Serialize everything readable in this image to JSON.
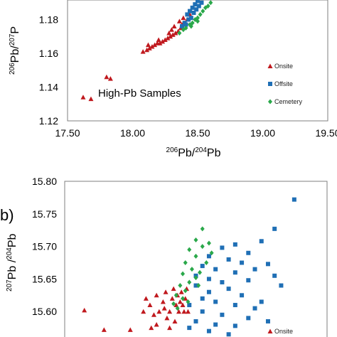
{
  "chart_data": [
    {
      "type": "scatter",
      "panel_label": "",
      "xlabel": {
        "pre": "206",
        "base1": "Pb/",
        "mid": "204",
        "base2": "Pb"
      },
      "ylabel": {
        "pre": "206",
        "base1": "Pb/",
        "mid": "207",
        "base2": "P"
      },
      "xlim": [
        17.5,
        19.5
      ],
      "ylim": [
        1.12,
        1.2
      ],
      "xticks": [
        "17.50",
        "18.00",
        "18.50",
        "19.00",
        "19.50"
      ],
      "yticks": [
        "1.12",
        "1.14",
        "1.16",
        "1.18"
      ],
      "annotation": "High-Pb Samples",
      "legend_position": "bottom-right",
      "grid": false,
      "series": [
        {
          "name": "Onsite",
          "marker": "triangle",
          "color": "#c0191e",
          "points": [
            [
              17.62,
              1.134
            ],
            [
              17.68,
              1.133
            ],
            [
              17.8,
              1.146
            ],
            [
              17.83,
              1.145
            ],
            [
              18.08,
              1.161
            ],
            [
              18.11,
              1.162
            ],
            [
              18.13,
              1.163
            ],
            [
              18.15,
              1.164
            ],
            [
              18.12,
              1.165
            ],
            [
              18.17,
              1.165
            ],
            [
              18.19,
              1.166
            ],
            [
              18.21,
              1.166
            ],
            [
              18.23,
              1.167
            ],
            [
              18.2,
              1.168
            ],
            [
              18.25,
              1.168
            ],
            [
              18.27,
              1.169
            ],
            [
              18.29,
              1.17
            ],
            [
              18.31,
              1.171
            ],
            [
              18.28,
              1.172
            ],
            [
              18.33,
              1.172
            ],
            [
              18.35,
              1.173
            ],
            [
              18.3,
              1.174
            ],
            [
              18.37,
              1.175
            ],
            [
              18.32,
              1.176
            ],
            [
              18.38,
              1.177
            ],
            [
              18.4,
              1.178
            ],
            [
              18.36,
              1.179
            ],
            [
              18.42,
              1.18
            ],
            [
              18.39,
              1.181
            ],
            [
              18.44,
              1.183
            ]
          ]
        },
        {
          "name": "Offsite",
          "marker": "square",
          "color": "#1f6fb5",
          "points": [
            [
              18.4,
              1.178
            ],
            [
              18.43,
              1.18
            ],
            [
              18.45,
              1.181
            ],
            [
              18.42,
              1.183
            ],
            [
              18.47,
              1.184
            ],
            [
              18.44,
              1.185
            ],
            [
              18.49,
              1.186
            ],
            [
              18.46,
              1.187
            ],
            [
              18.51,
              1.188
            ],
            [
              18.48,
              1.189
            ],
            [
              18.53,
              1.19
            ],
            [
              18.5,
              1.191
            ],
            [
              18.55,
              1.192
            ],
            [
              18.52,
              1.193
            ],
            [
              18.57,
              1.194
            ],
            [
              18.54,
              1.195
            ],
            [
              18.59,
              1.196
            ],
            [
              18.56,
              1.197
            ],
            [
              18.61,
              1.198
            ],
            [
              18.58,
              1.199
            ],
            [
              18.63,
              1.199
            ],
            [
              18.65,
              1.2
            ],
            [
              18.38,
              1.176
            ],
            [
              18.41,
              1.177
            ],
            [
              18.6,
              1.195
            ],
            [
              18.62,
              1.197
            ]
          ]
        },
        {
          "name": "Cemetery",
          "marker": "diamond",
          "color": "#2aa84a",
          "points": [
            [
              18.36,
              1.172
            ],
            [
              18.39,
              1.174
            ],
            [
              18.41,
              1.175
            ],
            [
              18.44,
              1.177
            ],
            [
              18.46,
              1.178
            ],
            [
              18.48,
              1.18
            ],
            [
              18.5,
              1.181
            ],
            [
              18.52,
              1.183
            ],
            [
              18.54,
              1.185
            ],
            [
              18.56,
              1.187
            ],
            [
              18.58,
              1.188
            ],
            [
              18.6,
              1.19
            ],
            [
              18.62,
              1.192
            ],
            [
              18.45,
              1.176
            ],
            [
              18.5,
              1.179
            ]
          ]
        }
      ]
    },
    {
      "type": "scatter",
      "panel_label": "b)",
      "xlabel": {
        "pre": "",
        "base1": "",
        "mid": "",
        "base2": ""
      },
      "ylabel": {
        "pre": "207",
        "base1": "Pb /",
        "mid": "204",
        "base2": "Pb"
      },
      "xlim": [
        17.5,
        19.5
      ],
      "ylim": [
        15.55,
        15.8
      ],
      "xticks": [],
      "yticks": [
        "15.80",
        "15.75",
        "15.70",
        "15.65",
        "15.60"
      ],
      "legend_position": "bottom-right",
      "legend_visible": [
        "Onsite"
      ],
      "grid": false,
      "series": [
        {
          "name": "Onsite",
          "marker": "triangle",
          "color": "#c0191e",
          "points": [
            [
              17.65,
              15.602
            ],
            [
              17.8,
              15.572
            ],
            [
              18.0,
              15.572
            ],
            [
              18.1,
              15.6
            ],
            [
              18.12,
              15.62
            ],
            [
              18.15,
              15.61
            ],
            [
              18.18,
              15.595
            ],
            [
              18.2,
              15.625
            ],
            [
              18.22,
              15.6
            ],
            [
              18.25,
              15.615
            ],
            [
              18.27,
              15.63
            ],
            [
              18.28,
              15.59
            ],
            [
              18.3,
              15.6
            ],
            [
              18.32,
              15.62
            ],
            [
              18.33,
              15.635
            ],
            [
              18.35,
              15.61
            ],
            [
              18.36,
              15.625
            ],
            [
              18.37,
              15.6
            ],
            [
              18.38,
              15.615
            ],
            [
              18.39,
              15.63
            ],
            [
              18.4,
              15.61
            ],
            [
              18.41,
              15.6
            ],
            [
              18.3,
              15.575
            ],
            [
              18.2,
              15.58
            ],
            [
              18.34,
              15.585
            ],
            [
              18.42,
              15.62
            ],
            [
              18.43,
              15.635
            ],
            [
              18.26,
              15.605
            ],
            [
              18.16,
              15.575
            ],
            [
              18.44,
              15.6
            ]
          ]
        },
        {
          "name": "Offsite",
          "marker": "square",
          "color": "#1f6fb5",
          "points": [
            [
              19.25,
              15.772
            ],
            [
              19.1,
              15.727
            ],
            [
              19.0,
              15.708
            ],
            [
              18.8,
              15.703
            ],
            [
              18.7,
              15.698
            ],
            [
              18.9,
              15.69
            ],
            [
              18.6,
              15.685
            ],
            [
              18.75,
              15.68
            ],
            [
              18.85,
              15.675
            ],
            [
              19.05,
              15.673
            ],
            [
              18.55,
              15.67
            ],
            [
              18.65,
              15.665
            ],
            [
              18.8,
              15.66
            ],
            [
              18.95,
              15.665
            ],
            [
              18.5,
              15.655
            ],
            [
              18.6,
              15.65
            ],
            [
              18.7,
              15.645
            ],
            [
              18.9,
              15.648
            ],
            [
              19.1,
              15.655
            ],
            [
              18.5,
              15.64
            ],
            [
              18.6,
              15.63
            ],
            [
              18.75,
              15.635
            ],
            [
              18.85,
              15.625
            ],
            [
              19.15,
              15.64
            ],
            [
              18.55,
              15.62
            ],
            [
              18.65,
              15.615
            ],
            [
              18.8,
              15.61
            ],
            [
              18.95,
              15.605
            ],
            [
              18.45,
              15.61
            ],
            [
              18.55,
              15.6
            ],
            [
              18.7,
              15.595
            ],
            [
              18.9,
              15.59
            ],
            [
              19.0,
              15.615
            ],
            [
              18.5,
              15.585
            ],
            [
              18.65,
              15.58
            ],
            [
              18.8,
              15.578
            ],
            [
              19.05,
              15.585
            ],
            [
              18.45,
              15.575
            ],
            [
              18.6,
              15.57
            ],
            [
              18.75,
              15.565
            ]
          ]
        },
        {
          "name": "Cemetery",
          "marker": "diamond",
          "color": "#2aa84a",
          "points": [
            [
              18.55,
              15.727
            ],
            [
              18.5,
              15.71
            ],
            [
              18.6,
              15.705
            ],
            [
              18.45,
              15.695
            ],
            [
              18.55,
              15.7
            ],
            [
              18.62,
              15.69
            ],
            [
              18.5,
              15.685
            ],
            [
              18.42,
              15.675
            ],
            [
              18.58,
              15.675
            ],
            [
              18.47,
              15.665
            ],
            [
              18.53,
              15.66
            ],
            [
              18.4,
              15.658
            ],
            [
              18.5,
              15.652
            ],
            [
              18.45,
              15.645
            ],
            [
              18.38,
              15.64
            ],
            [
              18.42,
              15.632
            ],
            [
              18.35,
              15.625
            ],
            [
              18.4,
              15.62
            ],
            [
              18.33,
              15.612
            ],
            [
              18.36,
              15.605
            ],
            [
              18.44,
              15.615
            ],
            [
              18.52,
              15.64
            ]
          ]
        }
      ]
    }
  ]
}
